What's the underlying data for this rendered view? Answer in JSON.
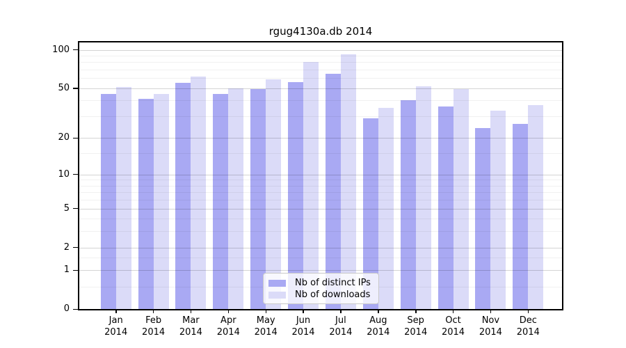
{
  "chart_data": {
    "type": "bar",
    "title": "rgug4130a.db 2014",
    "categories": [
      "Jan",
      "Feb",
      "Mar",
      "Apr",
      "May",
      "Jun",
      "Jul",
      "Aug",
      "Sep",
      "Oct",
      "Nov",
      "Dec"
    ],
    "category_year": "2014",
    "series": [
      {
        "name": "Nb of distinct IPs",
        "color": "#a9a9f3",
        "values": [
          45,
          41,
          55,
          45,
          49,
          56,
          65,
          29,
          40,
          36,
          24,
          26
        ]
      },
      {
        "name": "Nb of downloads",
        "color": "#dbdbf8",
        "values": [
          51,
          45,
          62,
          50,
          59,
          80,
          92,
          35,
          52,
          49,
          33,
          37
        ]
      }
    ],
    "yscale": "log1p",
    "yticks": [
      0,
      1,
      2,
      5,
      10,
      20,
      50,
      100
    ],
    "minor_gridlines": [
      0.5,
      1.5,
      3,
      4,
      6,
      7,
      8,
      9,
      15,
      30,
      40,
      60,
      70,
      80,
      90
    ],
    "ylim": [
      0,
      115
    ],
    "grid": true,
    "legend_position": "lower center",
    "axis_color": "#000000",
    "background_color": "#ffffff"
  }
}
